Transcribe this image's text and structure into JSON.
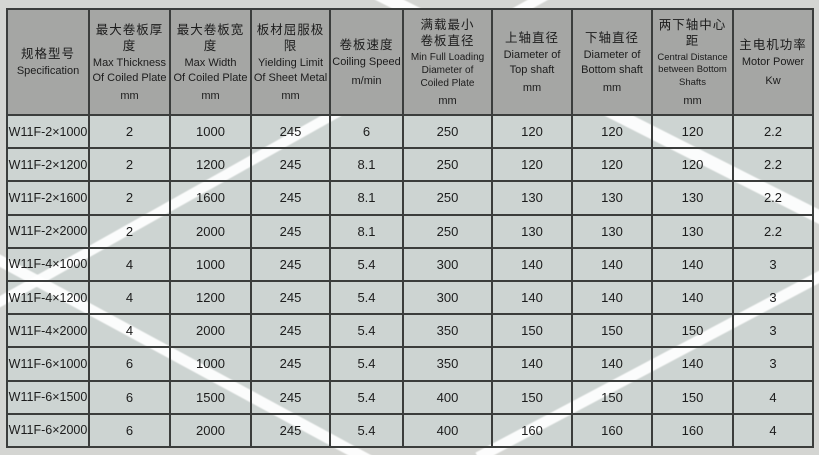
{
  "table": {
    "columns": [
      {
        "id": "specification",
        "zh": "规格型号",
        "en": "Specification",
        "unit": ""
      },
      {
        "id": "max-thickness",
        "zh": "最大卷板厚度",
        "en": "Max Thickness\nOf Coiled Plate",
        "unit": "mm"
      },
      {
        "id": "max-width",
        "zh": "最大卷板宽度",
        "en": "Max Width\nOf Coiled Plate",
        "unit": "mm"
      },
      {
        "id": "yielding-limit",
        "zh": "板材屈服极限",
        "en": "Yielding Limit\nOf Sheet Metal",
        "unit": "mm"
      },
      {
        "id": "coiling-speed",
        "zh": "卷板速度",
        "en": "Coiling Speed",
        "unit": "m/min"
      },
      {
        "id": "min-diameter",
        "zh": "满载最小\n卷板直径",
        "en": "Min Full Loading\nDiameter of\nCoiled Plate",
        "unit": "mm"
      },
      {
        "id": "top-shaft",
        "zh": "上轴直径",
        "en": "Diameter of\nTop shaft",
        "unit": "mm"
      },
      {
        "id": "bottom-shaft",
        "zh": "下轴直径",
        "en": "Diameter of\nBottom shaft",
        "unit": "mm"
      },
      {
        "id": "central-distance",
        "zh": "两下轴中心距",
        "en": "Central Distance\nbetween Bottom\nShafts",
        "unit": "mm"
      },
      {
        "id": "motor-power",
        "zh": "主电机功率",
        "en": "Motor Power",
        "unit": "Kw"
      }
    ],
    "rows": [
      {
        "model": "W11F-2×1000",
        "values": [
          "2",
          "1000",
          "245",
          "6",
          "250",
          "120",
          "120",
          "120",
          "2.2"
        ]
      },
      {
        "model": "W11F-2×1200",
        "values": [
          "2",
          "1200",
          "245",
          "8.1",
          "250",
          "120",
          "120",
          "120",
          "2.2"
        ]
      },
      {
        "model": "W11F-2×1600",
        "values": [
          "2",
          "1600",
          "245",
          "8.1",
          "250",
          "130",
          "130",
          "130",
          "2.2"
        ]
      },
      {
        "model": "W11F-2×2000",
        "values": [
          "2",
          "2000",
          "245",
          "8.1",
          "250",
          "130",
          "130",
          "130",
          "2.2"
        ]
      },
      {
        "model": "W11F-4×1000",
        "values": [
          "4",
          "1000",
          "245",
          "5.4",
          "300",
          "140",
          "140",
          "140",
          "3"
        ]
      },
      {
        "model": "W11F-4×1200",
        "values": [
          "4",
          "1200",
          "245",
          "5.4",
          "300",
          "140",
          "140",
          "140",
          "3"
        ]
      },
      {
        "model": "W11F-4×2000",
        "values": [
          "4",
          "2000",
          "245",
          "5.4",
          "350",
          "150",
          "150",
          "150",
          "3"
        ]
      },
      {
        "model": "W11F-6×1000",
        "values": [
          "6",
          "1000",
          "245",
          "5.4",
          "350",
          "140",
          "140",
          "140",
          "3"
        ]
      },
      {
        "model": "W11F-6×1500",
        "values": [
          "6",
          "1500",
          "245",
          "5.4",
          "400",
          "150",
          "150",
          "150",
          "4"
        ]
      },
      {
        "model": "W11F-6×2000",
        "values": [
          "6",
          "2000",
          "245",
          "5.4",
          "400",
          "160",
          "160",
          "160",
          "4"
        ]
      }
    ]
  },
  "colors": {
    "header_bg": "#a5a6a4",
    "cell_area_bg": "#cdd4d2",
    "margin_bg": "#d4d5d2",
    "border": "#3b3d3c",
    "text": "#1c1c1c",
    "stripe": "#ffffff"
  }
}
